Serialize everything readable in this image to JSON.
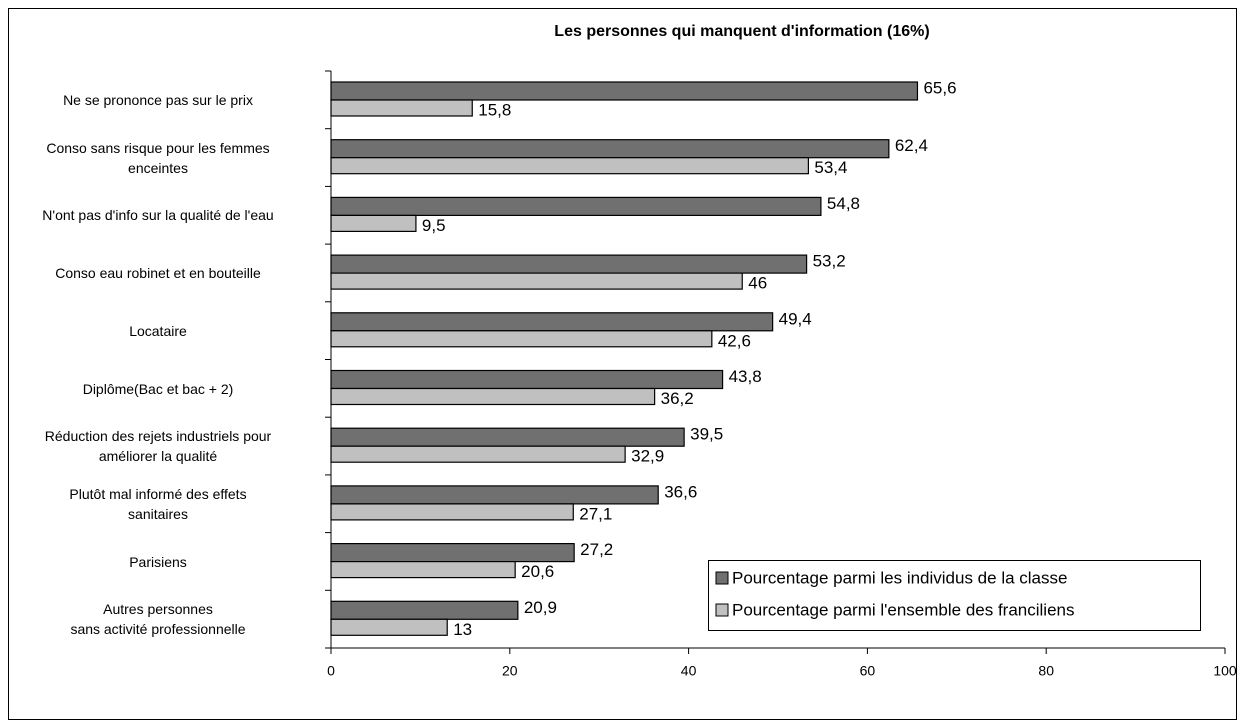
{
  "chart_data": {
    "type": "bar",
    "orientation": "horizontal",
    "title": "Les personnes qui manquent d'information (16%)",
    "categories": [
      "Ne se prononce pas sur le prix",
      "Conso sans risque pour les femmes\nenceintes",
      "N'ont pas d'info sur la qualité de l'eau",
      "Conso eau robinet et en bouteille",
      "Locataire",
      "Diplôme(Bac et bac + 2)",
      "Réduction des rejets industriels pour\naméliorer la qualité",
      "Plutôt mal informé des effets\nsanitaires",
      "Parisiens",
      "Autres personnes\nsans activité professionnelle"
    ],
    "series": [
      {
        "name": "Pourcentage parmi les individus de la classe",
        "color": "#707070",
        "values": [
          65.6,
          62.4,
          54.8,
          53.2,
          49.4,
          43.8,
          39.5,
          36.6,
          27.2,
          20.9
        ],
        "value_labels": [
          "65,6",
          "62,4",
          "54,8",
          "53,2",
          "49,4",
          "43,8",
          "39,5",
          "36,6",
          "27,2",
          "20,9"
        ]
      },
      {
        "name": "Pourcentage parmi l'ensemble des franciliens",
        "color": "#c0c0c0",
        "values": [
          15.8,
          53.4,
          9.5,
          46,
          42.6,
          36.2,
          32.9,
          27.1,
          20.6,
          13
        ],
        "value_labels": [
          "15,8",
          "53,4",
          "9,5",
          "46",
          "42,6",
          "36,2",
          "32,9",
          "27,1",
          "20,6",
          "13"
        ]
      }
    ],
    "xlim": [
      0,
      100
    ],
    "xticks": [
      0,
      20,
      40,
      60,
      80,
      100
    ],
    "grid": false,
    "legend": "lower right"
  }
}
